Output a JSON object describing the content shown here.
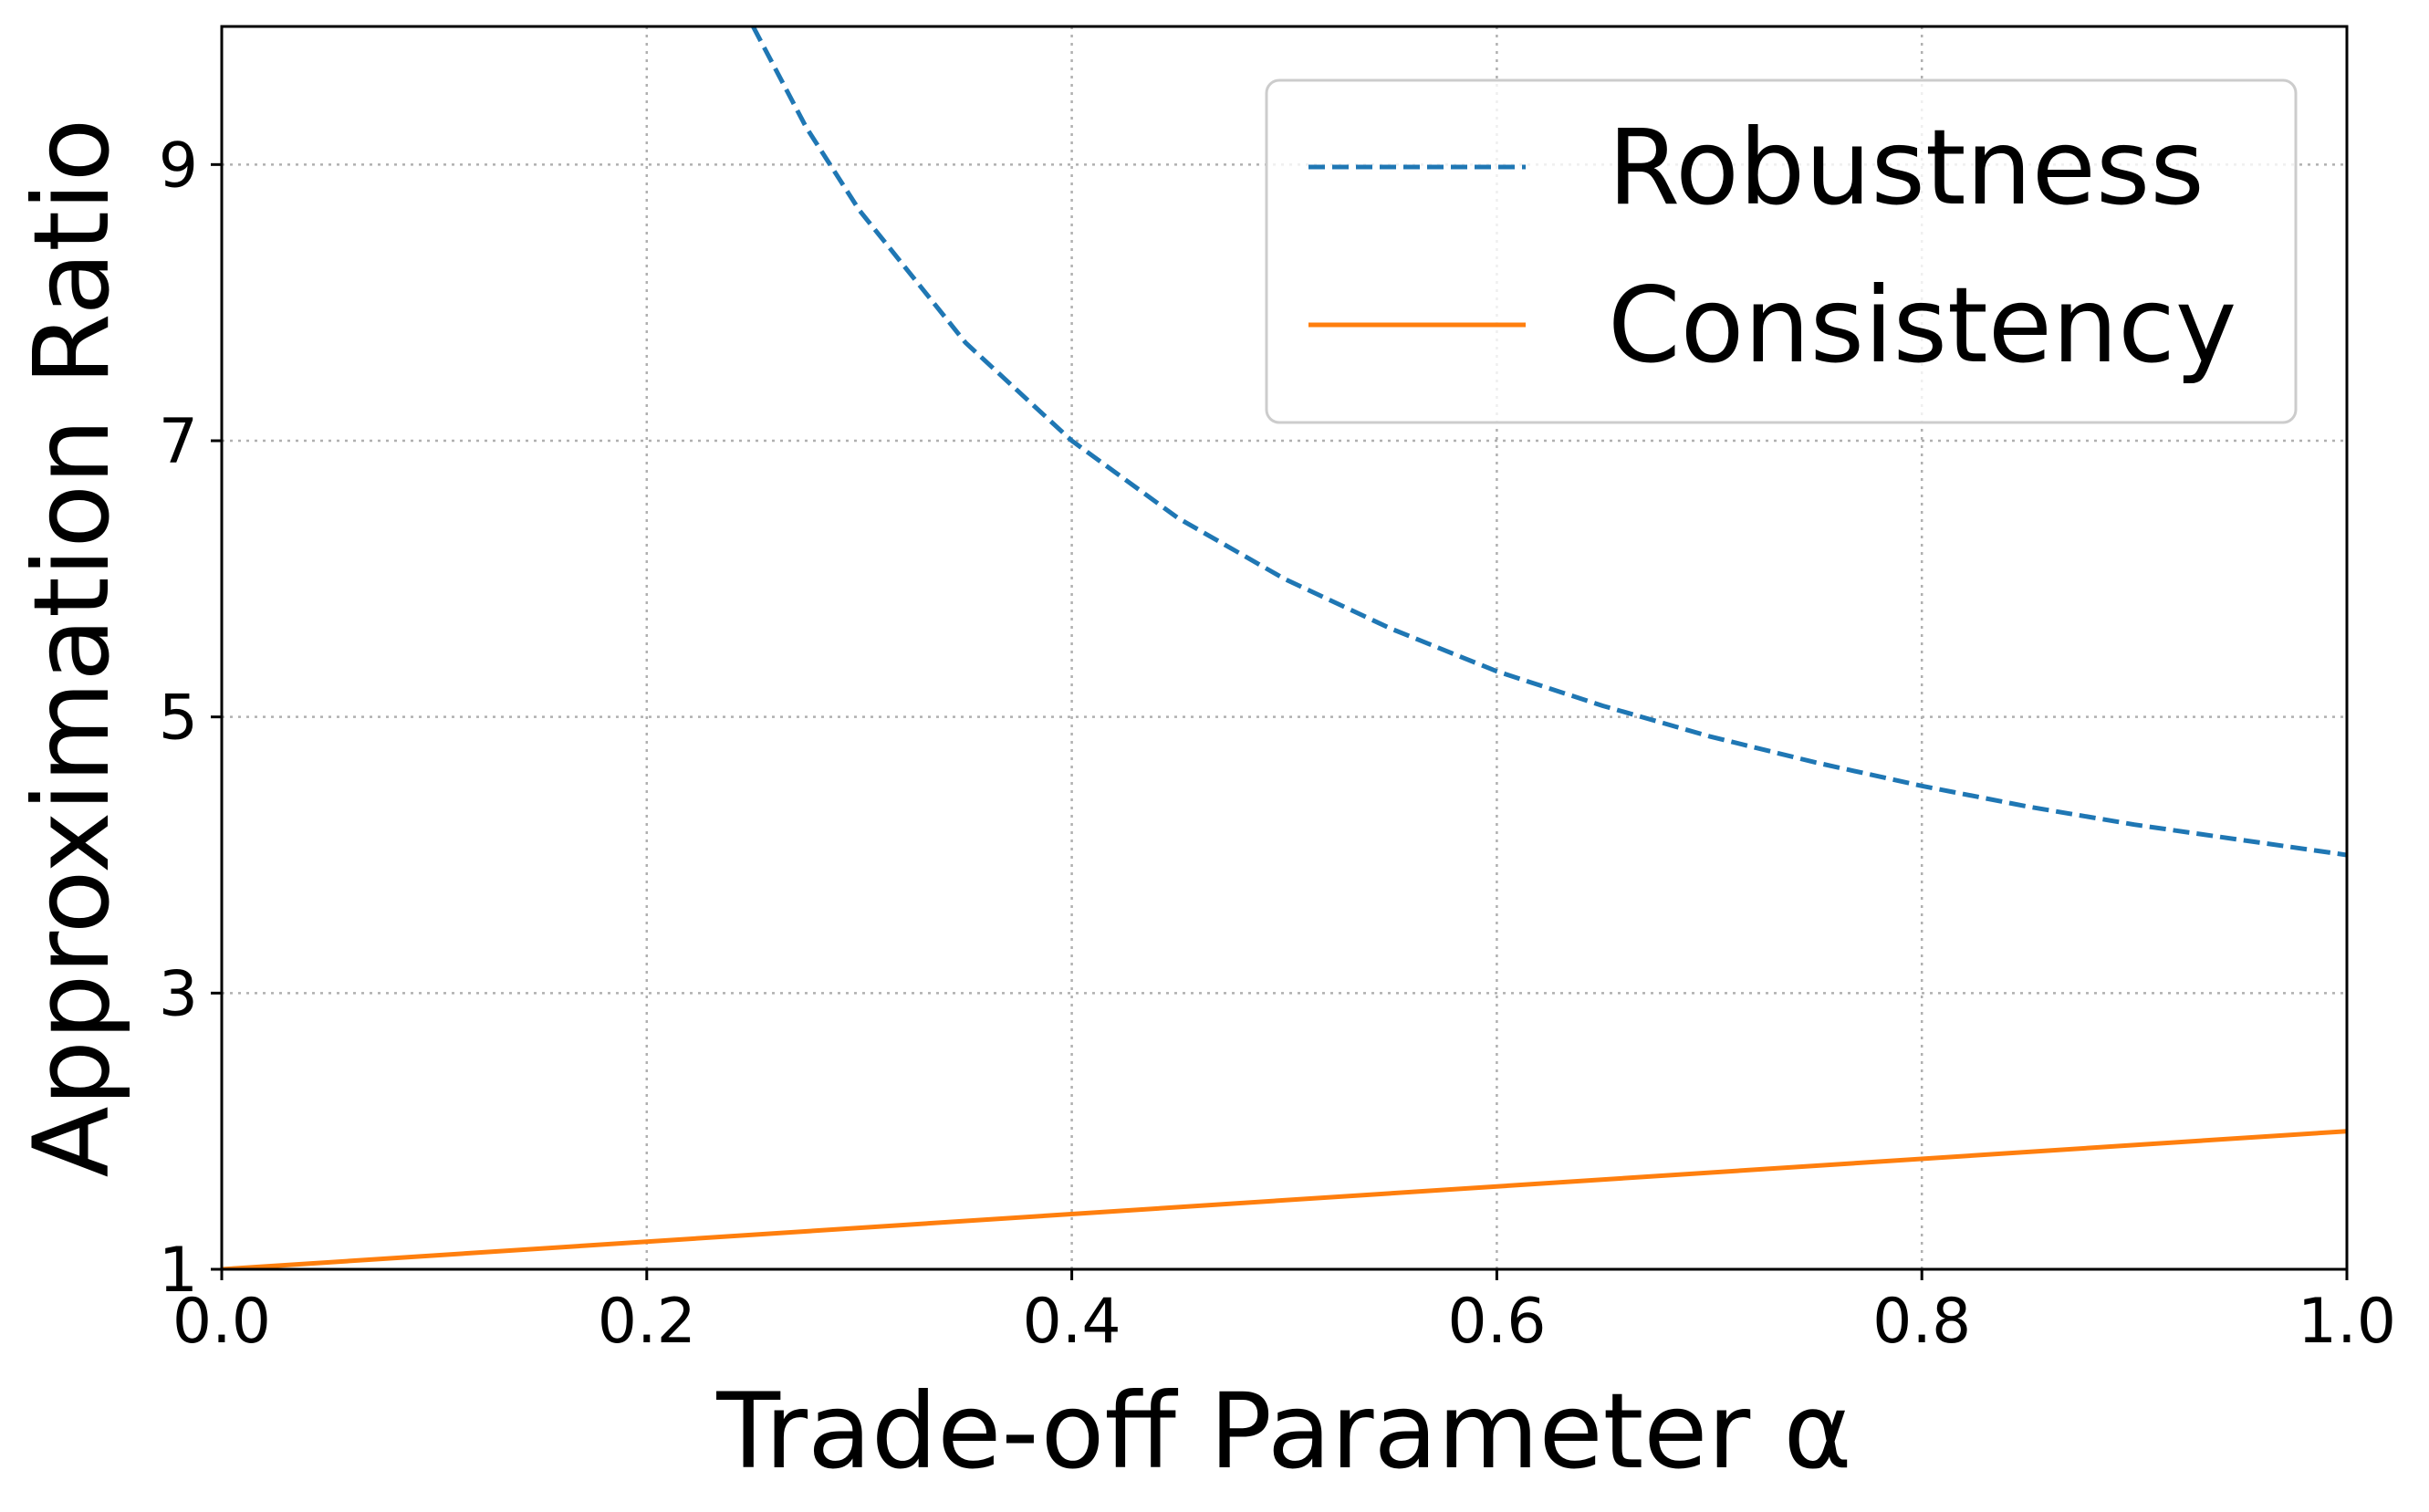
{
  "chart_data": {
    "type": "line",
    "xlabel": "Trade-off Parameter α",
    "ylabel": "Approximation Ratio",
    "xlim": [
      0.0,
      1.0
    ],
    "ylim": [
      1,
      10
    ],
    "xticks": [
      0.0,
      0.2,
      0.4,
      0.6,
      0.8,
      1.0
    ],
    "xtick_labels": [
      "0.0",
      "0.2",
      "0.4",
      "0.6",
      "0.8",
      "1.0"
    ],
    "yticks": [
      1,
      3,
      5,
      7,
      9
    ],
    "ytick_labels": [
      "1",
      "3",
      "5",
      "7",
      "9"
    ],
    "grid": true,
    "legend_position": "top-right",
    "series": [
      {
        "name": "Robustness",
        "style": "dashed",
        "color": "#1f77b4",
        "x": [
          0.25,
          0.275,
          0.3,
          0.35,
          0.4,
          0.45,
          0.5,
          0.55,
          0.6,
          0.65,
          0.7,
          0.75,
          0.8,
          0.85,
          0.9,
          0.95,
          1.0
        ],
        "y": [
          10.0,
          9.27,
          8.67,
          7.71,
          7.0,
          6.44,
          6.0,
          5.64,
          5.33,
          5.08,
          4.86,
          4.67,
          4.5,
          4.35,
          4.22,
          4.11,
          4.0
        ]
      },
      {
        "name": "Consistency",
        "style": "solid",
        "color": "#ff7f0e",
        "x": [
          0.0,
          1.0
        ],
        "y": [
          1.0,
          2.0
        ]
      }
    ]
  }
}
